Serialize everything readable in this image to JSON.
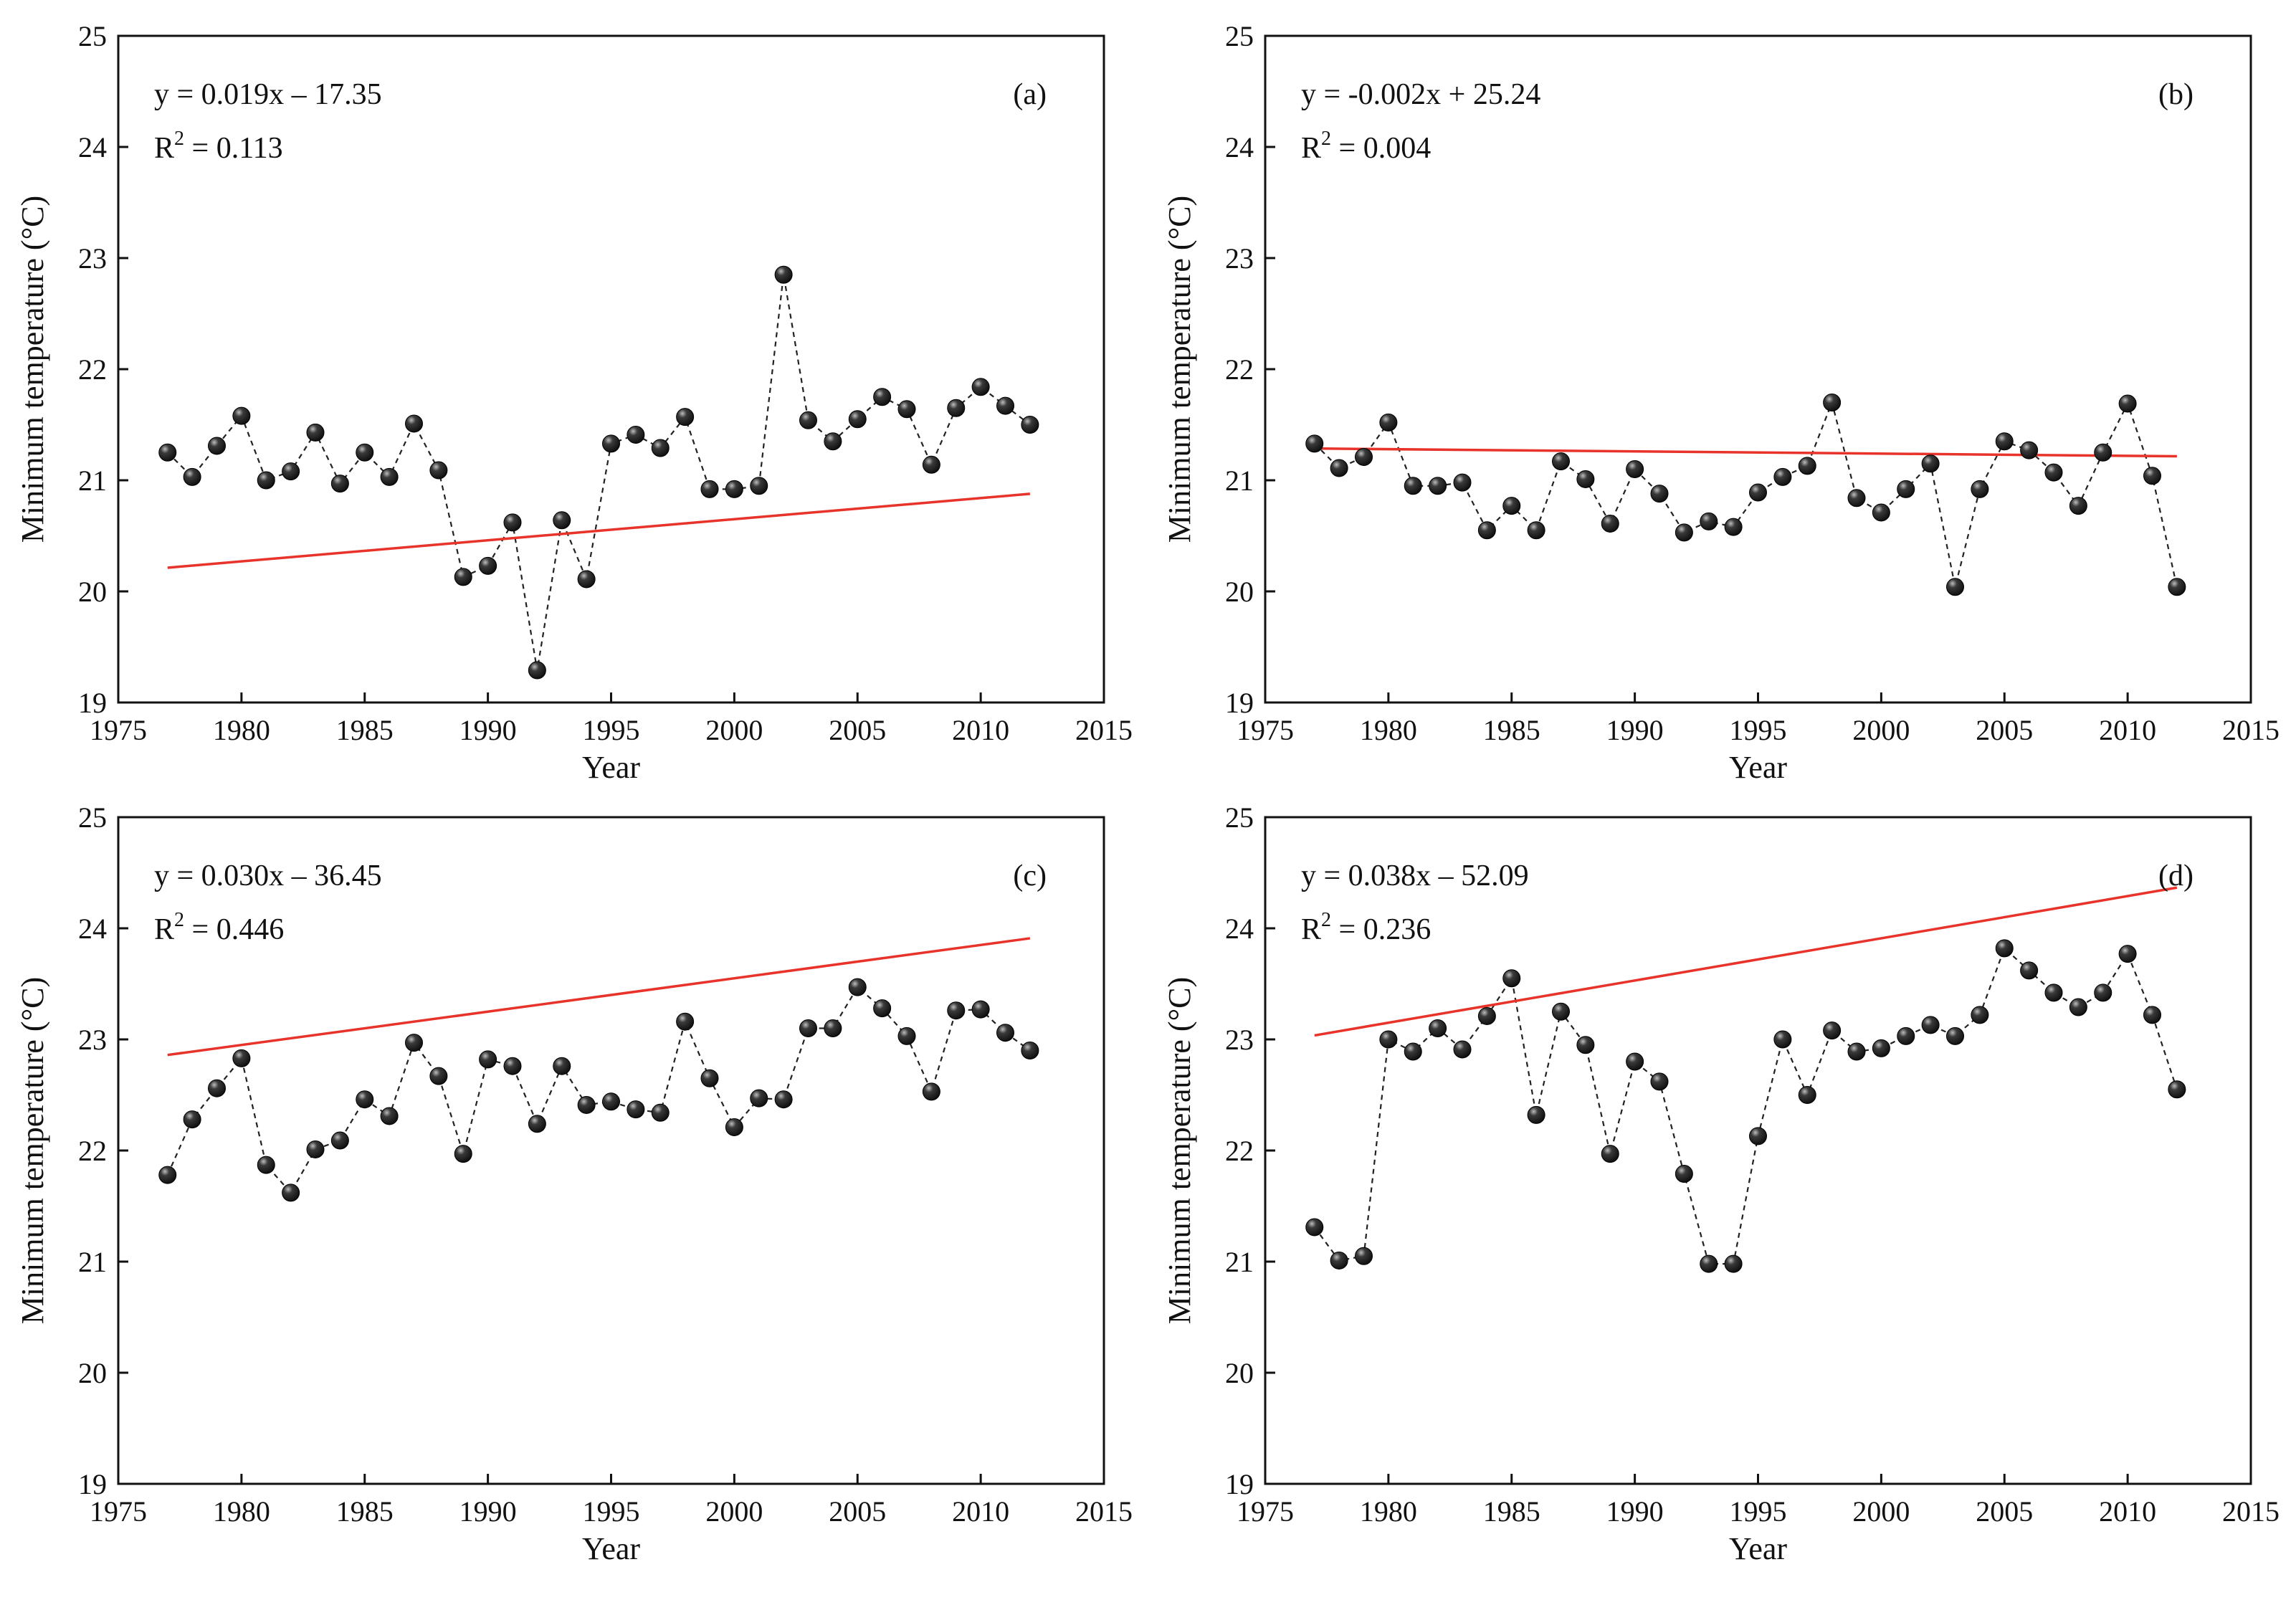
{
  "colors": {
    "trend": "#e8332a",
    "marker": "#111111",
    "frame": "#111111"
  },
  "chart_data": [
    {
      "type": "scatter",
      "panel_label": "(a)",
      "equation": "y = 0.019x – 17.35",
      "r2_prefix": "R",
      "r2_sup": "2",
      "r2_value": " = 0.113",
      "trend": {
        "slope": 0.019,
        "intercept": -17.35
      },
      "xlabel": "Year",
      "ylabel": "Minimum temperature (°C)",
      "xlim": [
        1975,
        2015
      ],
      "ylim": [
        19,
        25
      ],
      "xticks": [
        1975,
        1980,
        1985,
        1990,
        1995,
        2000,
        2005,
        2010,
        2015
      ],
      "yticks": [
        19,
        20,
        21,
        22,
        23,
        24,
        25
      ],
      "x": [
        1977,
        1978,
        1979,
        1980,
        1981,
        1982,
        1983,
        1984,
        1985,
        1986,
        1987,
        1988,
        1989,
        1990,
        1991,
        1992,
        1993,
        1994,
        1995,
        1996,
        1997,
        1998,
        1999,
        2000,
        2001,
        2002,
        2003,
        2004,
        2005,
        2006,
        2007,
        2008,
        2009,
        2010,
        2011,
        2012
      ],
      "y": [
        21.25,
        21.03,
        21.31,
        21.58,
        21.0,
        21.08,
        21.43,
        20.97,
        21.25,
        21.03,
        21.51,
        21.09,
        20.13,
        20.23,
        20.62,
        19.29,
        20.64,
        20.11,
        21.33,
        21.41,
        21.29,
        21.57,
        20.92,
        20.92,
        20.95,
        22.85,
        21.54,
        21.35,
        21.55,
        21.75,
        21.64,
        21.14,
        21.65,
        21.84,
        21.67,
        21.5
      ]
    },
    {
      "type": "scatter",
      "panel_label": "(b)",
      "equation": "y = -0.002x + 25.24",
      "r2_prefix": "R",
      "r2_sup": "2",
      "r2_value": " = 0.004",
      "trend": {
        "slope": -0.002,
        "intercept": 25.24
      },
      "xlabel": "Year",
      "ylabel": "Minimum temperature (°C)",
      "xlim": [
        1975,
        2015
      ],
      "ylim": [
        19,
        25
      ],
      "xticks": [
        1975,
        1980,
        1985,
        1990,
        1995,
        2000,
        2005,
        2010,
        2015
      ],
      "yticks": [
        19,
        20,
        21,
        22,
        23,
        24,
        25
      ],
      "x": [
        1977,
        1978,
        1979,
        1980,
        1981,
        1982,
        1983,
        1984,
        1985,
        1986,
        1987,
        1988,
        1989,
        1990,
        1991,
        1992,
        1993,
        1994,
        1995,
        1996,
        1997,
        1998,
        1999,
        2000,
        2001,
        2002,
        2003,
        2004,
        2005,
        2006,
        2007,
        2008,
        2009,
        2010,
        2011,
        2012
      ],
      "y": [
        21.33,
        21.11,
        21.21,
        21.52,
        20.95,
        20.95,
        20.98,
        20.55,
        20.77,
        20.55,
        21.17,
        21.01,
        20.61,
        21.1,
        20.88,
        20.53,
        20.63,
        20.58,
        20.89,
        21.03,
        21.13,
        21.7,
        20.84,
        20.71,
        20.92,
        21.15,
        20.04,
        20.92,
        21.35,
        21.27,
        21.07,
        20.77,
        21.25,
        21.69,
        21.04,
        20.04
      ]
    },
    {
      "type": "scatter",
      "panel_label": "(c)",
      "equation": "y = 0.030x – 36.45",
      "r2_prefix": "R",
      "r2_sup": "2",
      "r2_value": " = 0.446",
      "trend": {
        "slope": 0.03,
        "intercept": -36.45
      },
      "xlabel": "Year",
      "ylabel": "Minimum temperature (°C)",
      "xlim": [
        1975,
        2015
      ],
      "ylim": [
        19,
        25
      ],
      "xticks": [
        1975,
        1980,
        1985,
        1990,
        1995,
        2000,
        2005,
        2010,
        2015
      ],
      "yticks": [
        19,
        20,
        21,
        22,
        23,
        24,
        25
      ],
      "x": [
        1977,
        1978,
        1979,
        1980,
        1981,
        1982,
        1983,
        1984,
        1985,
        1986,
        1987,
        1988,
        1989,
        1990,
        1991,
        1992,
        1993,
        1994,
        1995,
        1996,
        1997,
        1998,
        1999,
        2000,
        2001,
        2002,
        2003,
        2004,
        2005,
        2006,
        2007,
        2008,
        2009,
        2010,
        2011,
        2012
      ],
      "y": [
        21.78,
        22.28,
        22.56,
        22.83,
        21.87,
        21.62,
        22.01,
        22.09,
        22.46,
        22.31,
        22.97,
        22.67,
        21.97,
        22.82,
        22.76,
        22.24,
        22.76,
        22.41,
        22.44,
        22.37,
        22.34,
        23.16,
        22.65,
        22.21,
        22.47,
        22.46,
        23.1,
        23.1,
        23.47,
        23.28,
        23.03,
        22.53,
        23.26,
        23.27,
        23.06,
        22.9
      ]
    },
    {
      "type": "scatter",
      "panel_label": "(d)",
      "equation": "y = 0.038x – 52.09",
      "r2_prefix": "R",
      "r2_sup": "2",
      "r2_value": " = 0.236",
      "trend": {
        "slope": 0.038,
        "intercept": -52.09
      },
      "xlabel": "Year",
      "ylabel": "Minimum temperature (°C)",
      "xlim": [
        1975,
        2015
      ],
      "ylim": [
        19,
        25
      ],
      "xticks": [
        1975,
        1980,
        1985,
        1990,
        1995,
        2000,
        2005,
        2010,
        2015
      ],
      "yticks": [
        19,
        20,
        21,
        22,
        23,
        24,
        25
      ],
      "x": [
        1977,
        1978,
        1979,
        1980,
        1981,
        1982,
        1983,
        1984,
        1985,
        1986,
        1987,
        1988,
        1989,
        1990,
        1991,
        1992,
        1993,
        1994,
        1995,
        1996,
        1997,
        1998,
        1999,
        2000,
        2001,
        2002,
        2003,
        2004,
        2005,
        2006,
        2007,
        2008,
        2009,
        2010,
        2011,
        2012
      ],
      "y": [
        21.31,
        21.01,
        21.05,
        23.0,
        22.89,
        23.1,
        22.91,
        23.21,
        23.55,
        22.32,
        23.25,
        22.95,
        21.97,
        22.8,
        22.62,
        21.79,
        20.98,
        20.98,
        22.13,
        23.0,
        22.5,
        23.08,
        22.89,
        22.92,
        23.03,
        23.13,
        23.03,
        23.22,
        23.82,
        23.62,
        23.42,
        23.29,
        23.42,
        23.77,
        23.22,
        22.55
      ]
    }
  ]
}
